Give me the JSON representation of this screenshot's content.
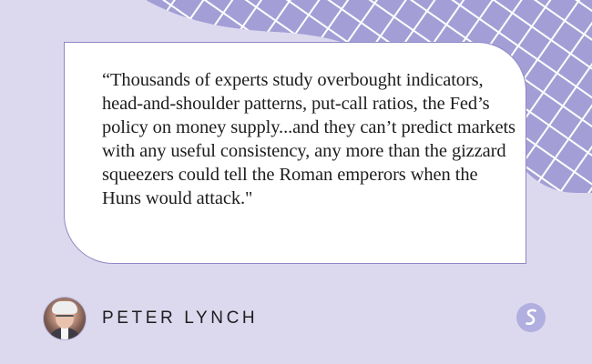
{
  "quote": {
    "text": "“Thousands of experts study overbought indicators, head-and-shoulder patterns, put-call ratios, the Fed’s policy on money supply...and they can’t predict markets with any useful consistency, any more than the gizzard squeezers could tell the Roman emperors when the Huns would attack.\""
  },
  "author": {
    "name": "PETER LYNCH",
    "avatar_icon": "avatar-photo"
  },
  "brand": {
    "logo_icon": "s-logo-icon"
  },
  "colors": {
    "background": "#dcd9ee",
    "pattern_fill": "#a39fd6",
    "box_border": "#8f88c4",
    "logo": "#b1aee0"
  }
}
